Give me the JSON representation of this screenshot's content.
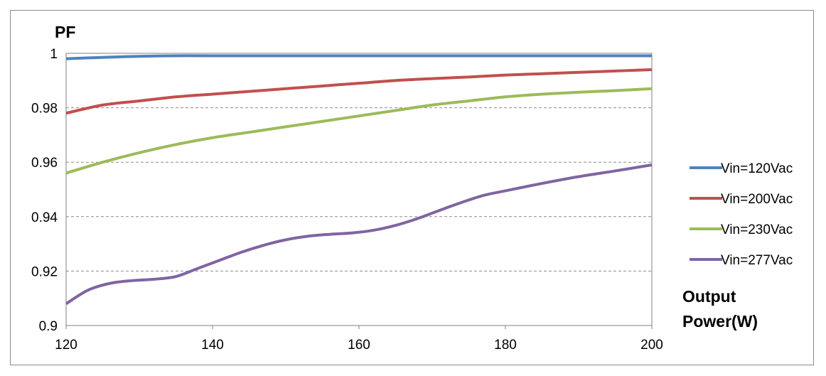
{
  "chart_data": {
    "type": "line",
    "ylabel": "PF",
    "xlabel_lines": [
      "Output",
      "Power(W)"
    ],
    "xlim": [
      120,
      200
    ],
    "ylim": [
      0.9,
      1.0
    ],
    "x_ticks": [
      120,
      140,
      160,
      180,
      200
    ],
    "x_tick_labels": [
      "120",
      "140",
      "160",
      "180",
      "200"
    ],
    "y_ticks": [
      0.9,
      0.92,
      0.94,
      0.96,
      0.98,
      1.0
    ],
    "y_tick_labels": [
      "0.9",
      "0.92",
      "0.94",
      "0.96",
      "0.98",
      "1"
    ],
    "grid": "horizontal dashed",
    "legend_position": "right",
    "series": [
      {
        "name": "Vin=120Vac",
        "color": "#4f81bd",
        "x": [
          120,
          125,
          130,
          135,
          140,
          150,
          160,
          170,
          180,
          190,
          200
        ],
        "values": [
          0.998,
          0.9985,
          0.9989,
          0.9991,
          0.9991,
          0.9991,
          0.9991,
          0.9991,
          0.9991,
          0.9991,
          0.9991
        ]
      },
      {
        "name": "Vin=200Vac",
        "color": "#c0504d",
        "x": [
          120,
          125,
          130,
          135,
          140,
          145,
          150,
          155,
          160,
          165,
          170,
          175,
          180,
          185,
          190,
          195,
          200
        ],
        "values": [
          0.978,
          0.981,
          0.9825,
          0.984,
          0.985,
          0.986,
          0.987,
          0.988,
          0.989,
          0.99,
          0.9907,
          0.9913,
          0.992,
          0.9925,
          0.993,
          0.9935,
          0.994
        ]
      },
      {
        "name": "Vin=230Vac",
        "color": "#9bbb59",
        "x": [
          120,
          125,
          130,
          135,
          140,
          145,
          150,
          155,
          160,
          165,
          170,
          175,
          180,
          185,
          190,
          195,
          200
        ],
        "values": [
          0.956,
          0.96,
          0.9635,
          0.9665,
          0.969,
          0.971,
          0.973,
          0.975,
          0.977,
          0.979,
          0.981,
          0.9825,
          0.984,
          0.985,
          0.9857,
          0.9863,
          0.987
        ]
      },
      {
        "name": "Vin=277Vac",
        "color": "#8064a2",
        "x": [
          120,
          123,
          126,
          129,
          132,
          135,
          138,
          141,
          144,
          147,
          150,
          153,
          156,
          159,
          162,
          165,
          168,
          171,
          174,
          177,
          180,
          185,
          190,
          195,
          200
        ],
        "values": [
          0.908,
          0.913,
          0.9155,
          0.9165,
          0.917,
          0.918,
          0.921,
          0.924,
          0.927,
          0.9295,
          0.9315,
          0.9328,
          0.9335,
          0.934,
          0.935,
          0.9368,
          0.9393,
          0.9423,
          0.9452,
          0.9478,
          0.9495,
          0.9522,
          0.9547,
          0.9568,
          0.959
        ]
      }
    ]
  }
}
